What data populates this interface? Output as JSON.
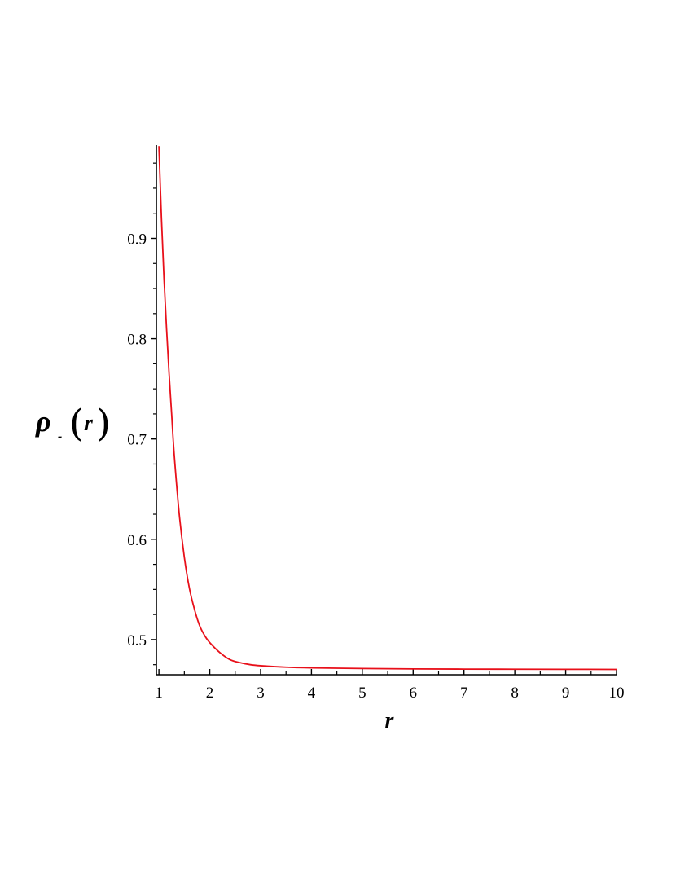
{
  "chart_data": {
    "type": "line",
    "title": "",
    "xlabel": "r",
    "ylabel": {
      "symbol": "ρ",
      "subscript": "-",
      "argument": "r"
    },
    "xlim": [
      0.95,
      10
    ],
    "ylim": [
      0.465,
      0.993
    ],
    "xticks": [
      1,
      2,
      3,
      4,
      5,
      6,
      7,
      8,
      9,
      10
    ],
    "xtick_labels": [
      "1",
      "2",
      "3",
      "4",
      "5",
      "6",
      "7",
      "8",
      "9",
      "10"
    ],
    "yticks": [
      0.5,
      0.6,
      0.7,
      0.8,
      0.9
    ],
    "ytick_labels": [
      "0.5",
      "0.6",
      "0.7",
      "0.8",
      "0.9"
    ],
    "grid": false,
    "legend": "none",
    "series": [
      {
        "color": "#e8101a",
        "x": [
          1.0,
          1.05,
          1.1,
          1.15,
          1.2,
          1.25,
          1.3,
          1.4,
          1.5,
          1.6,
          1.7,
          1.8,
          1.9,
          2.0,
          2.2,
          2.4,
          2.6,
          2.8,
          3.0,
          3.5,
          4.0,
          5.0,
          6.0,
          7.0,
          8.0,
          9.0,
          10.0
        ],
        "y": [
          0.992,
          0.92,
          0.86,
          0.81,
          0.765,
          0.725,
          0.685,
          0.625,
          0.582,
          0.551,
          0.53,
          0.514,
          0.504,
          0.497,
          0.487,
          0.48,
          0.477,
          0.475,
          0.474,
          0.4725,
          0.4718,
          0.4712,
          0.4708,
          0.4706,
          0.4705,
          0.4704,
          0.4703
        ]
      }
    ]
  }
}
